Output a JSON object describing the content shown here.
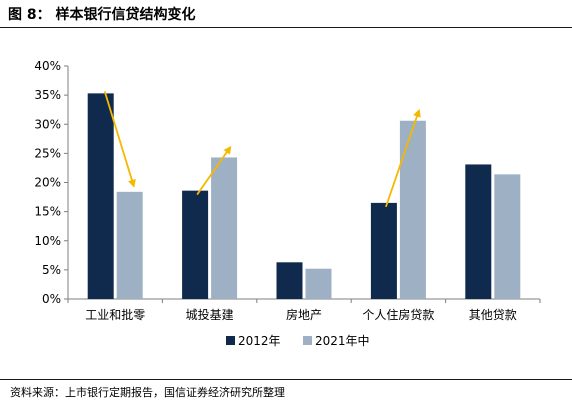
{
  "header": {
    "title": "图 8：  样本银行信贷结构变化"
  },
  "footer": {
    "source": "资料来源：上市银行定期报告，国信证券经济研究所整理"
  },
  "chart_data": {
    "type": "bar",
    "title": "",
    "xlabel": "",
    "ylabel": "",
    "categories": [
      "工业和批零",
      "城投基建",
      "房地产",
      "个人住房贷款",
      "其他贷款"
    ],
    "series": [
      {
        "name": "2012年",
        "values": [
          35.3,
          18.6,
          6.3,
          16.5,
          23.1
        ],
        "color": "#0f2a4d"
      },
      {
        "name": "2021年中",
        "values": [
          18.4,
          24.3,
          5.2,
          30.6,
          21.4
        ],
        "color": "#9eb0c4"
      }
    ],
    "ylim": [
      0,
      40
    ],
    "yticks": [
      "0%",
      "5%",
      "10%",
      "15%",
      "20%",
      "25%",
      "30%",
      "35%",
      "40%"
    ],
    "legend_position": "bottom",
    "grid": false,
    "annotations": [
      {
        "type": "arrow",
        "color": "#f5b800",
        "from_category": "工业和批零",
        "direction": "down"
      },
      {
        "type": "arrow",
        "color": "#f5b800",
        "from_category": "城投基建",
        "direction": "up"
      },
      {
        "type": "arrow",
        "color": "#f5b800",
        "from_category": "个人住房贷款",
        "direction": "up"
      }
    ]
  }
}
